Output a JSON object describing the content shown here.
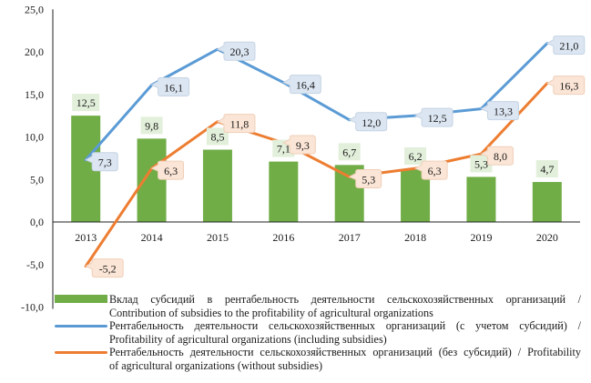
{
  "chart_data": {
    "type": "bar",
    "title": "",
    "xlabel": "",
    "ylabel": "",
    "categories": [
      "2013",
      "2014",
      "2015",
      "2016",
      "2017",
      "2018",
      "2019",
      "2020"
    ],
    "ylim": [
      -10,
      25
    ],
    "yticks": [
      25,
      20,
      15,
      10,
      5,
      0,
      -5,
      -10
    ],
    "ytick_labels": [
      "25,0",
      "20,0",
      "15,0",
      "10,0",
      "5,0",
      "0,0",
      "-5,0",
      "-10,0"
    ],
    "grid": false,
    "legend_position": "bottom",
    "series": [
      {
        "name": "Вклад субсидий в рентабельность деятельности сельскохозяйственных организаций / Contribution of subsidies to the profitability of agricultural organizations",
        "type": "bar",
        "color": "#70ad47",
        "label_bg": "#e2efda",
        "values": [
          12.5,
          9.8,
          8.5,
          7.1,
          6.7,
          6.2,
          5.3,
          4.7
        ],
        "labels": [
          "12,5",
          "9,8",
          "8,5",
          "7,1",
          "6,7",
          "6,2",
          "5,3",
          "4,7"
        ]
      },
      {
        "name": "Рентабельность деятельности сельскохозяйственных организаций (с учетом субсидий) / Profitability of agricultural organizations (including subsidies)",
        "type": "line",
        "color": "#5b9bd5",
        "label_bg": "#dce6f2",
        "values": [
          7.3,
          16.1,
          20.3,
          16.4,
          12.0,
          12.5,
          13.3,
          21.0
        ],
        "labels": [
          "7,3",
          "16,1",
          "20,3",
          "16,4",
          "12,0",
          "12,5",
          "13,3",
          "21,0"
        ]
      },
      {
        "name": "Рентабельность деятельности сельскохозяйственных организаций (без субсидий) / Profitability of agricultural organizations (without subsidies)",
        "type": "line",
        "color": "#ed7d31",
        "label_bg": "#fbe5d6",
        "values": [
          -5.2,
          6.3,
          11.8,
          9.3,
          5.3,
          6.3,
          8.0,
          16.3
        ],
        "labels": [
          "-5,2",
          "6,3",
          "11,8",
          "9,3",
          "5,3",
          "6,3",
          "8,0",
          "16,3"
        ]
      }
    ]
  },
  "legend": {
    "items": [
      {
        "ru": "Вклад субсидий в рентабельность деятельности сельскохозяйственных организаций /",
        "en": "Contribution of subsidies to the profitability of agricultural organizations"
      },
      {
        "ru": "Рентабельность деятельности сельскохозяйственных организаций (с учетом субсидий) /",
        "en": "Profitability of agricultural organizations (including subsidies)"
      },
      {
        "ru": "Рентабельность деятельности сельскохозяйственных организаций (без субсидий) / Profitability",
        "en": "of agricultural organizations (without subsidies)"
      }
    ]
  }
}
